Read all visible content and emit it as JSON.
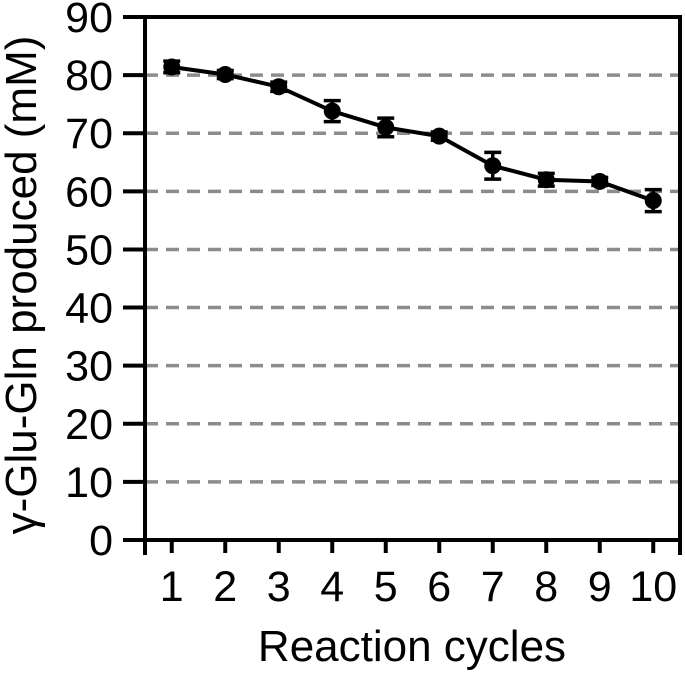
{
  "figure": {
    "background": "#ffffff",
    "frame_color": "#000000"
  },
  "chart_data": {
    "type": "line",
    "title": "",
    "xlabel": "Reaction cycles",
    "ylabel": "γ-Glu-Gln produced (mM)",
    "categories": [
      "1",
      "2",
      "3",
      "4",
      "5",
      "6",
      "7",
      "8",
      "9",
      "10"
    ],
    "series": [
      {
        "name": "gamma-Glu-Gln produced",
        "values": [
          81.4,
          80.1,
          78.0,
          73.8,
          71.0,
          69.5,
          64.4,
          62.0,
          61.7,
          58.4
        ],
        "errors": [
          1.0,
          0.7,
          0.8,
          1.8,
          1.6,
          0.7,
          2.3,
          1.1,
          0.7,
          1.9
        ],
        "color": "#000000",
        "marker": "circle"
      }
    ],
    "ylim": [
      0,
      90
    ],
    "yticks": [
      0,
      10,
      20,
      30,
      40,
      50,
      60,
      70,
      80,
      90
    ],
    "grid": {
      "horizontal": true,
      "vertical": false,
      "style": "dashed",
      "color": "#8c8c8c"
    },
    "legend": "none",
    "error_bars": "vertical, capped, both directions"
  }
}
